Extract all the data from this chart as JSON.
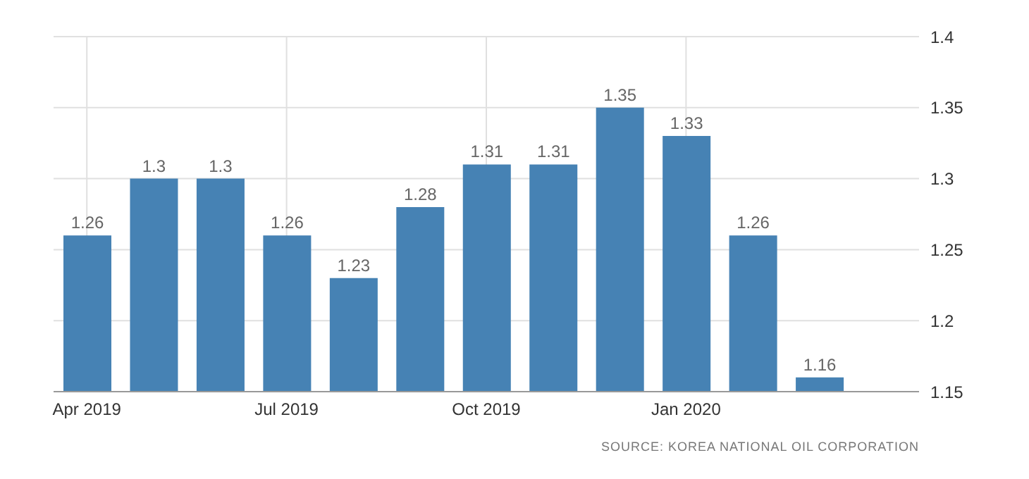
{
  "chart_data": {
    "type": "bar",
    "categories": [
      "Apr 2019",
      null,
      null,
      "Jul 2019",
      null,
      null,
      "Oct 2019",
      null,
      null,
      "Jan 2020",
      null,
      null,
      null
    ],
    "values": [
      1.26,
      1.3,
      1.3,
      1.26,
      1.23,
      1.28,
      1.31,
      1.31,
      1.35,
      1.33,
      1.26,
      1.16,
      null
    ],
    "color": "#4682b4",
    "ylim": [
      1.15,
      1.4
    ],
    "yticks": [
      1.15,
      1.2,
      1.25,
      1.3,
      1.35,
      1.4
    ],
    "grid": true,
    "data_labels": true,
    "annotations": [
      "SOURCE: KOREA NATIONAL OIL CORPORATION"
    ]
  }
}
